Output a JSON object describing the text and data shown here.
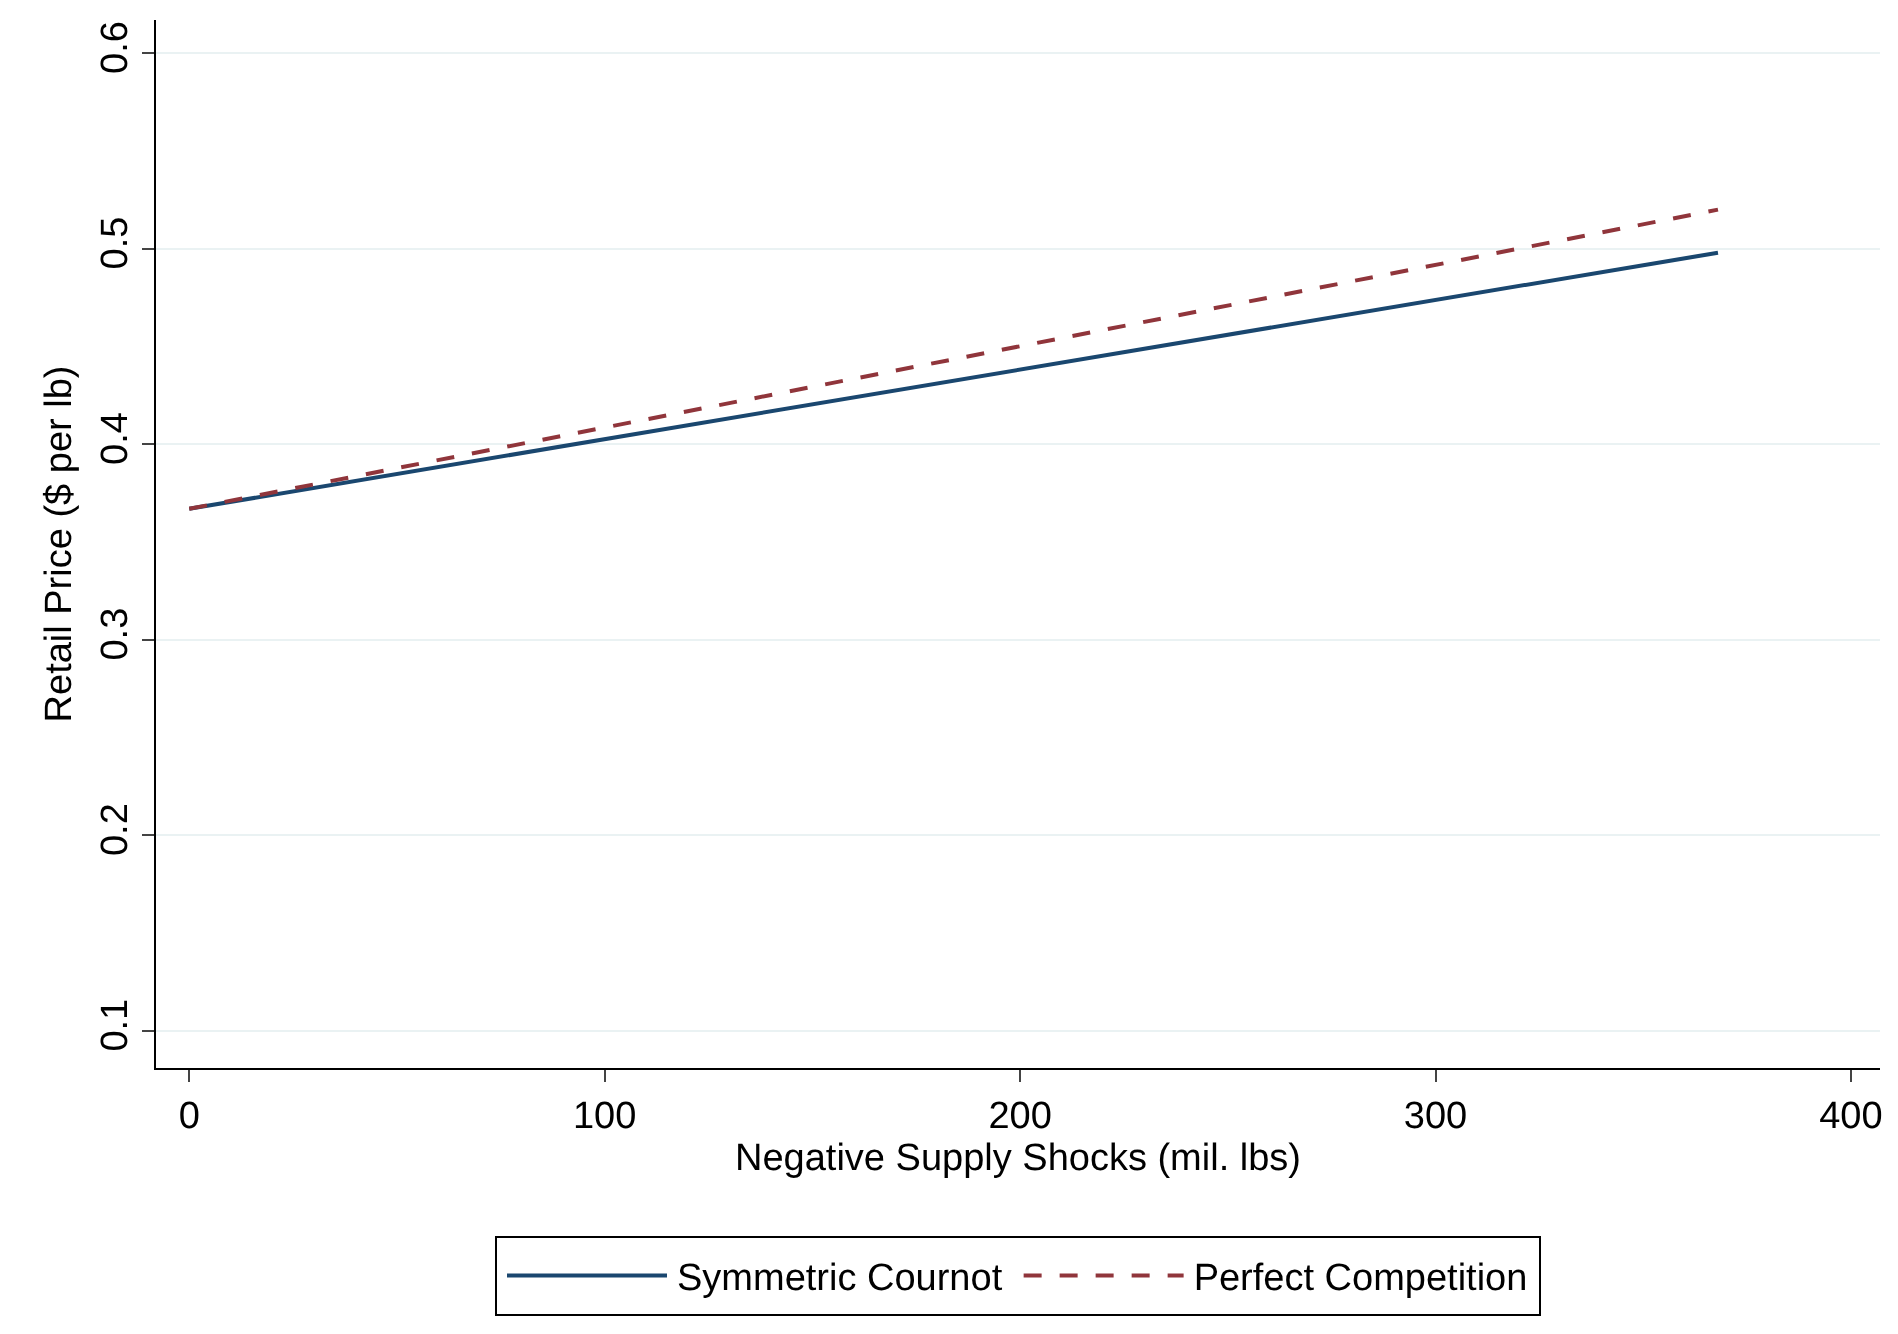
{
  "chart_data": {
    "type": "line",
    "xlabel": "Negative Supply Shocks (mil. lbs)",
    "ylabel": "Retail Price ($ per lb)",
    "x": [
      0,
      368
    ],
    "series": [
      {
        "name": "Symmetric Cournot",
        "color": "#1a476f",
        "values": [
          0.367,
          0.498
        ],
        "line_style": "solid"
      },
      {
        "name": "Perfect Competition",
        "color": "#90353b",
        "values": [
          0.367,
          0.52
        ],
        "line_style": "dashed"
      }
    ],
    "xlim": [
      -8,
      407
    ],
    "xticks": [
      0,
      100,
      200,
      300,
      400
    ],
    "ylim": [
      0.081,
      0.617
    ],
    "yticks": [
      0.1,
      0.2,
      0.3,
      0.4,
      0.5,
      0.6
    ],
    "grid": "y",
    "legend": "bottom",
    "marker": "none"
  }
}
